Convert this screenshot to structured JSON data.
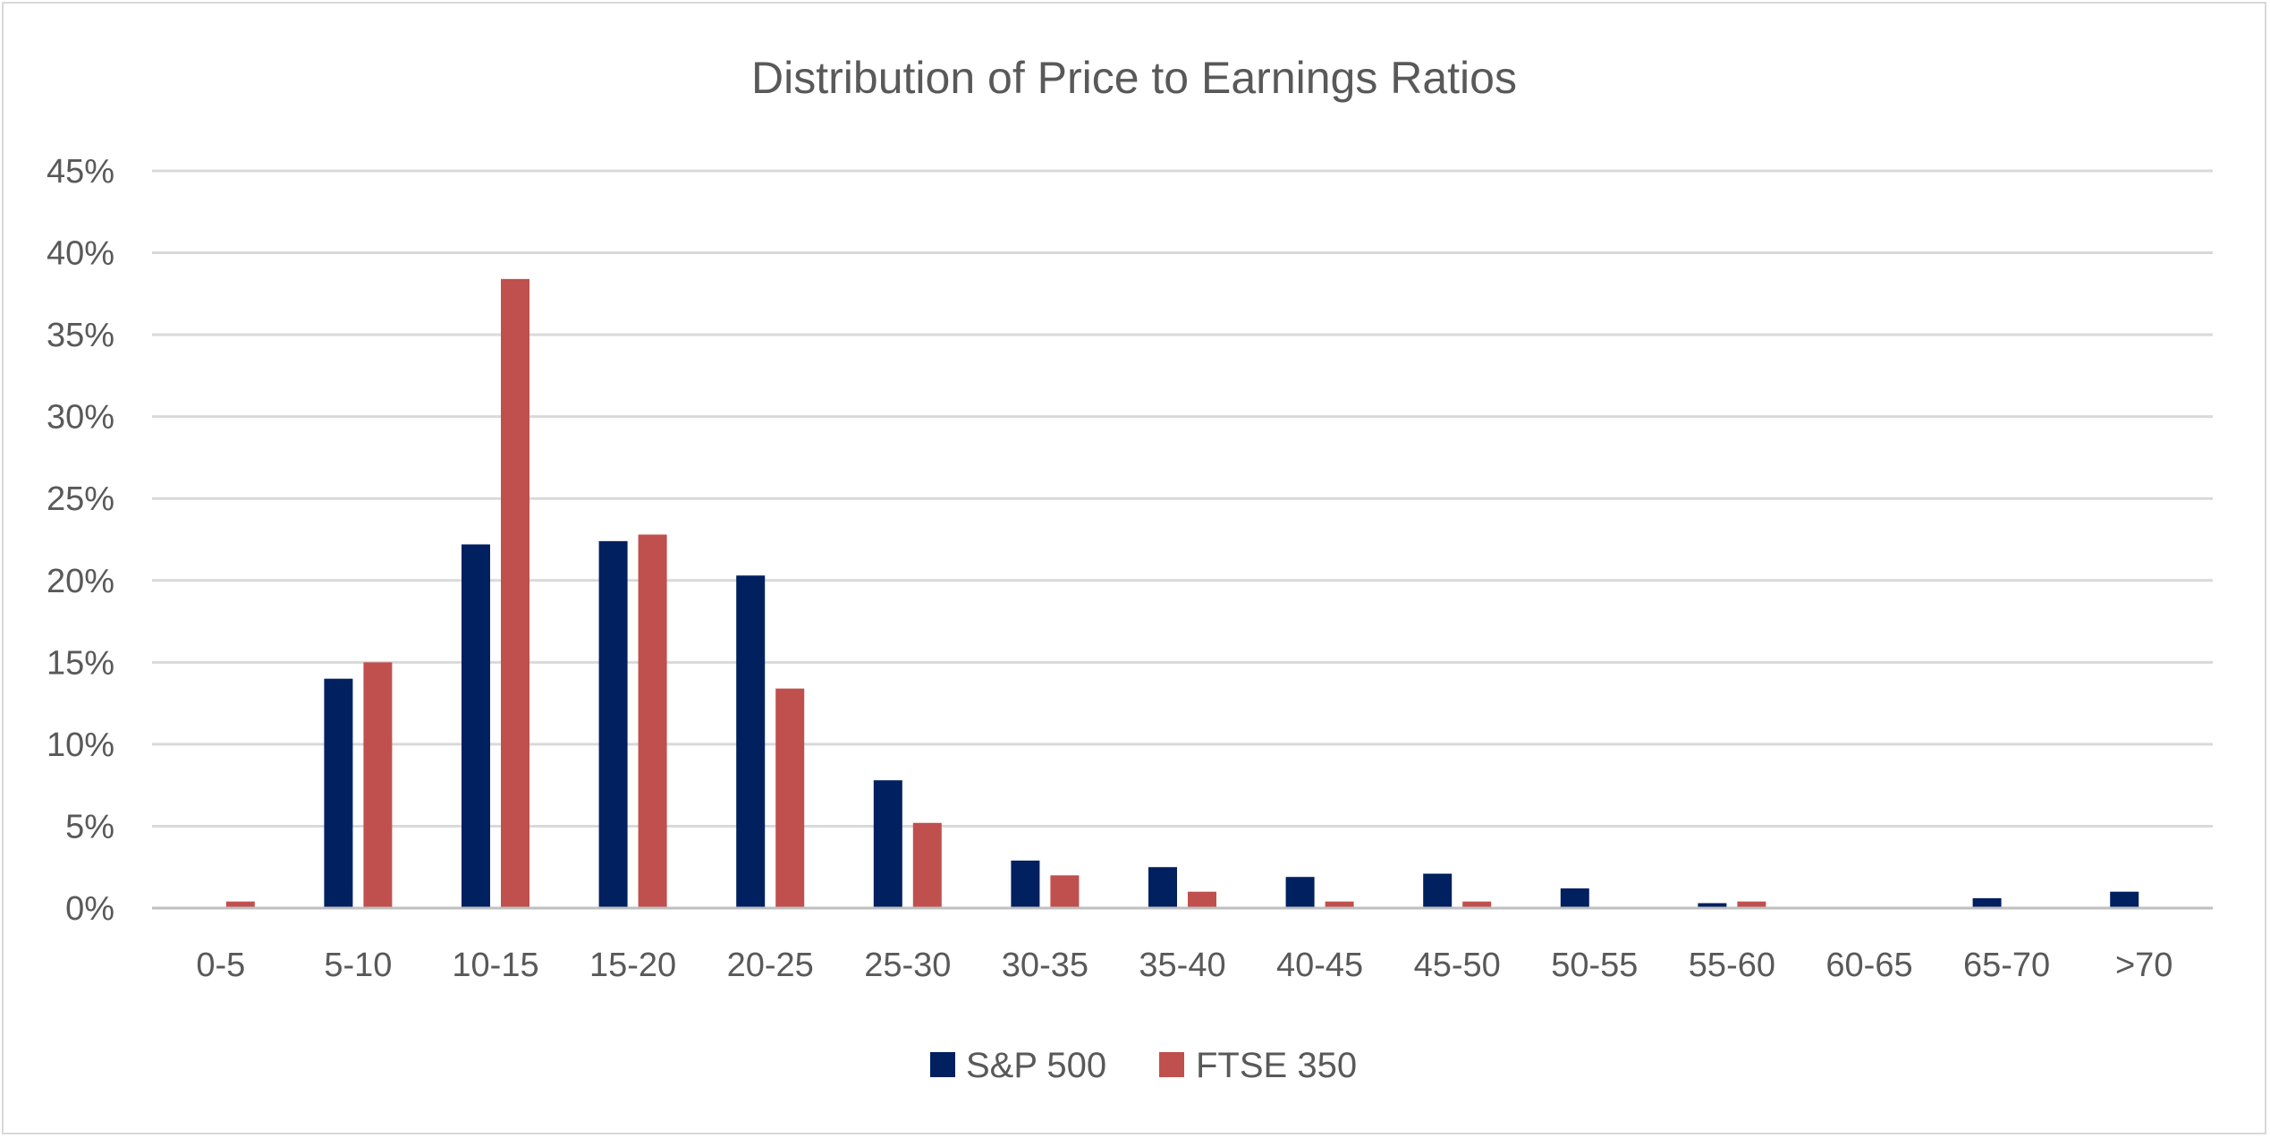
{
  "chart_data": {
    "type": "bar",
    "title": "Distribution of Price to Earnings Ratios",
    "xlabel": "",
    "ylabel": "",
    "ylim": [
      0,
      45
    ],
    "y_ticks": [
      "0%",
      "5%",
      "10%",
      "15%",
      "20%",
      "25%",
      "30%",
      "35%",
      "40%",
      "45%"
    ],
    "categories": [
      "0-5",
      "5-10",
      "10-15",
      "15-20",
      "20-25",
      "25-30",
      "30-35",
      "35-40",
      "40-45",
      "45-50",
      "50-55",
      "55-60",
      "60-65",
      "65-70",
      ">70"
    ],
    "series": [
      {
        "name": "S&P 500",
        "color": "#002060",
        "values": [
          0,
          14.0,
          22.2,
          22.4,
          20.3,
          7.8,
          2.9,
          2.5,
          1.9,
          2.1,
          1.2,
          0.3,
          0,
          0.6,
          1.0
        ]
      },
      {
        "name": "FTSE 350",
        "color": "#C0504D",
        "values": [
          0.4,
          15.0,
          38.4,
          22.8,
          13.4,
          5.2,
          2.0,
          1.0,
          0.4,
          0.4,
          0,
          0.4,
          0,
          0,
          0
        ]
      }
    ],
    "grid": true,
    "legend_position": "bottom"
  }
}
